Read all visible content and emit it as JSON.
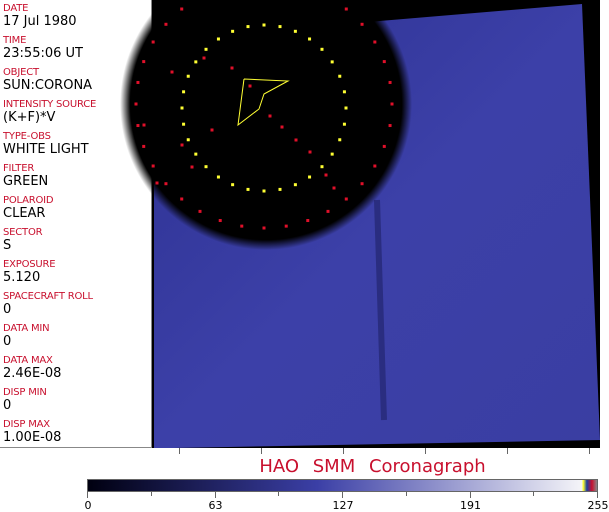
{
  "info_panel": {
    "fields": [
      {
        "label": "DATE",
        "value": "17 Jul 1980"
      },
      {
        "label": "TIME",
        "value": "23:55:06 UT"
      },
      {
        "label": "OBJECT",
        "value": "SUN:CORONA"
      },
      {
        "label": "INTENSITY SOURCE",
        "value": "(K+F)*V"
      },
      {
        "label": "TYPE-OBS",
        "value": "WHITE LIGHT"
      },
      {
        "label": "FILTER",
        "value": "GREEN"
      },
      {
        "label": "POLAROID",
        "value": "CLEAR"
      },
      {
        "label": "SECTOR",
        "value": "S"
      },
      {
        "label": "EXPOSURE",
        "value": "5.120"
      },
      {
        "label": "SPACECRAFT ROLL",
        "value": "0"
      },
      {
        "label": "DATA MIN",
        "value": "0"
      },
      {
        "label": "DATA MAX",
        "value": "2.46E-08"
      },
      {
        "label": "DISP MIN",
        "value": "0"
      },
      {
        "label": "DISP MAX",
        "value": "1.00E-08"
      }
    ]
  },
  "image": {
    "title": "HAO  SMM Coronagraph",
    "occulter_color": "#000000",
    "field_color": "#3b3fa6",
    "overlay_colors": {
      "ring_inner": "#ffff33",
      "ring_outer": "#e0102a",
      "sector_outline": "#ffff33"
    }
  },
  "colorbar": {
    "tick_labels": [
      "0",
      "63",
      "127",
      "191",
      "255"
    ],
    "gradient": [
      "#000010",
      "#3b3fa6",
      "#f4f4f8"
    ]
  },
  "colors": {
    "label": "#c8102e",
    "value": "#000000"
  }
}
